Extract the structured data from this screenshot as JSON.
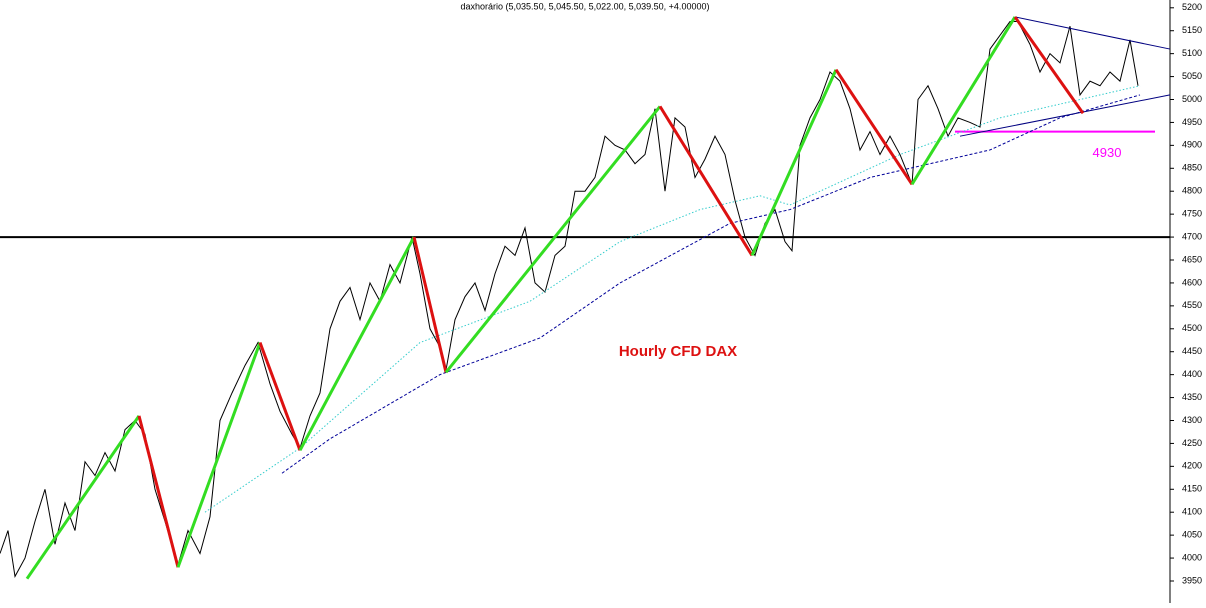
{
  "chart_data": {
    "type": "line",
    "title": "daxhorário (5,035.50, 5,045.50, 5,022.00, 5,039.50, +4.00000)",
    "annotation": "Hourly CFD DAX",
    "xlim": [
      0,
      1170
    ],
    "ylim": [
      3902,
      5217
    ],
    "yticks": [
      3950,
      4000,
      4050,
      4100,
      4150,
      4200,
      4250,
      4300,
      4350,
      4400,
      4450,
      4500,
      4550,
      4600,
      4650,
      4700,
      4750,
      4800,
      4850,
      4900,
      4950,
      5000,
      5050,
      5100,
      5150,
      5200
    ],
    "series": [
      {
        "color": "#000000",
        "style": "solid",
        "width": 1,
        "x": [
          0,
          8,
          15,
          25,
          35,
          45,
          55,
          65,
          75,
          85,
          95,
          105,
          115,
          125,
          135,
          145,
          155,
          165,
          178,
          188,
          200,
          210,
          220,
          232,
          245,
          258,
          270,
          280,
          292,
          300,
          310,
          320,
          330,
          340,
          350,
          360,
          370,
          380,
          390,
          400,
          412,
          420,
          430,
          440,
          446,
          455,
          465,
          475,
          485,
          495,
          505,
          515,
          525,
          535,
          545,
          555,
          565,
          575,
          585,
          595,
          605,
          615,
          625,
          635,
          645,
          655,
          665,
          675,
          685,
          695,
          705,
          715,
          725,
          735,
          745,
          755,
          765,
          775,
          785,
          792,
          800,
          810,
          820,
          830,
          840,
          850,
          860,
          870,
          880,
          890,
          900,
          912,
          918,
          928,
          938,
          948,
          958,
          970,
          980,
          990,
          1000,
          1010,
          1018,
          1030,
          1040,
          1050,
          1060,
          1070,
          1080,
          1090,
          1100,
          1110,
          1120,
          1130,
          1138
        ],
        "values": [
          4010,
          4060,
          3960,
          4000,
          4080,
          4150,
          4030,
          4120,
          4060,
          4210,
          4180,
          4230,
          4190,
          4280,
          4300,
          4270,
          4150,
          4080,
          3985,
          4060,
          4010,
          4090,
          4300,
          4360,
          4420,
          4470,
          4380,
          4320,
          4270,
          4240,
          4310,
          4360,
          4500,
          4560,
          4590,
          4520,
          4600,
          4560,
          4640,
          4600,
          4700,
          4620,
          4500,
          4460,
          4410,
          4520,
          4570,
          4600,
          4540,
          4620,
          4680,
          4660,
          4720,
          4600,
          4580,
          4660,
          4680,
          4800,
          4800,
          4830,
          4920,
          4900,
          4890,
          4860,
          4880,
          4980,
          4800,
          4960,
          4940,
          4830,
          4870,
          4920,
          4880,
          4780,
          4700,
          4660,
          4730,
          4760,
          4690,
          4670,
          4900,
          4960,
          5000,
          5060,
          5040,
          4980,
          4890,
          4930,
          4880,
          4920,
          4880,
          4815,
          5000,
          5030,
          4980,
          4920,
          4960,
          4950,
          4940,
          5110,
          5140,
          5170,
          5170,
          5120,
          5060,
          5100,
          5080,
          5160,
          5010,
          5040,
          5030,
          5060,
          5040,
          5130,
          5030
        ]
      },
      {
        "color": "#33cccc",
        "style": "dotted",
        "width": 1,
        "x": [
          205,
          300,
          420,
          530,
          620,
          700,
          760,
          790,
          900,
          1000,
          1140
        ],
        "values": [
          4100,
          4240,
          4470,
          4560,
          4690,
          4760,
          4790,
          4770,
          4880,
          4960,
          5030
        ]
      },
      {
        "color": "#000099",
        "style": "dashed",
        "width": 1,
        "x": [
          282,
          330,
          440,
          540,
          620,
          730,
          790,
          870,
          990,
          1060,
          1140
        ],
        "values": [
          4185,
          4260,
          4400,
          4480,
          4600,
          4730,
          4760,
          4830,
          4890,
          4960,
          5010
        ]
      },
      {
        "color": "#000080",
        "style": "solid",
        "width": 1,
        "x": [
          1015,
          1170
        ],
        "values": [
          5180,
          5110
        ]
      },
      {
        "color": "#000080",
        "style": "solid",
        "width": 1,
        "x": [
          960,
          1170
        ],
        "values": [
          4920,
          5010
        ]
      }
    ],
    "zigzag": {
      "up_color": "#33dd22",
      "down_color": "#dd1111",
      "x": [
        27,
        139,
        178,
        260,
        300,
        414,
        446,
        660,
        752,
        836,
        912,
        1015,
        1083
      ],
      "values": [
        3955,
        4310,
        3980,
        4470,
        4235,
        4700,
        4405,
        4985,
        4660,
        5065,
        4815,
        5180,
        4970
      ]
    },
    "hlines": [
      {
        "value": 4700,
        "color": "#000000"
      },
      {
        "value": 4930,
        "color": "#ff00ff",
        "x": [
          955,
          1155
        ]
      }
    ]
  }
}
